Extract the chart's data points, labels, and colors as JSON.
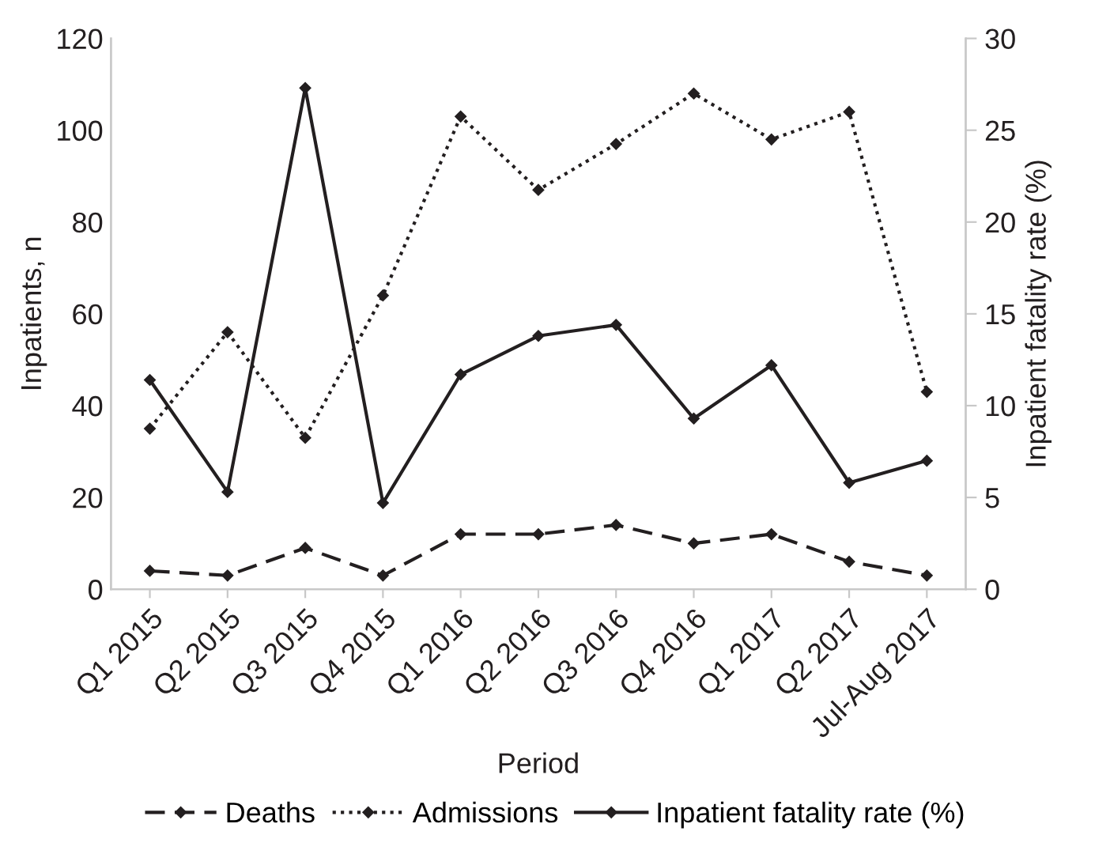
{
  "chart_data": {
    "type": "line",
    "xlabel": "Period",
    "ylabel": "Inpatients, n",
    "y2label": "Inpatient fatality rate (%)",
    "categories": [
      "Q1 2015",
      "Q2 2015",
      "Q3 2015",
      "Q4 2015",
      "Q1 2016",
      "Q2 2016",
      "Q3 2016",
      "Q4 2016",
      "Q1 2017",
      "Q2 2017",
      "Jul-Aug 2017"
    ],
    "series": [
      {
        "name": "Deaths",
        "color": "#231f20",
        "line_style": "dashed",
        "values": [
          4,
          3,
          9,
          3,
          12,
          12,
          14,
          10,
          12,
          6,
          3
        ]
      },
      {
        "name": "Admissions",
        "color": "#231f20",
        "line_style": "dotted",
        "values": [
          35,
          56,
          33,
          64,
          103,
          87,
          97,
          108,
          98,
          104,
          43
        ]
      },
      {
        "name": "Inpatient fatality rate (%)",
        "color": "#231f20",
        "line_style": "solid",
        "axis": "y2",
        "values": [
          11.4,
          5.3,
          27.3,
          4.7,
          11.7,
          13.8,
          14.4,
          9.3,
          12.2,
          5.8,
          7.0
        ]
      }
    ],
    "ylim": [
      0,
      120
    ],
    "yticks": [
      0,
      20,
      40,
      60,
      80,
      100,
      120
    ],
    "y2lim": [
      0,
      30
    ],
    "y2ticks": [
      0,
      5,
      10,
      15,
      20,
      25,
      30
    ],
    "marker": "diamond",
    "grid": false,
    "legend": "bottom"
  }
}
